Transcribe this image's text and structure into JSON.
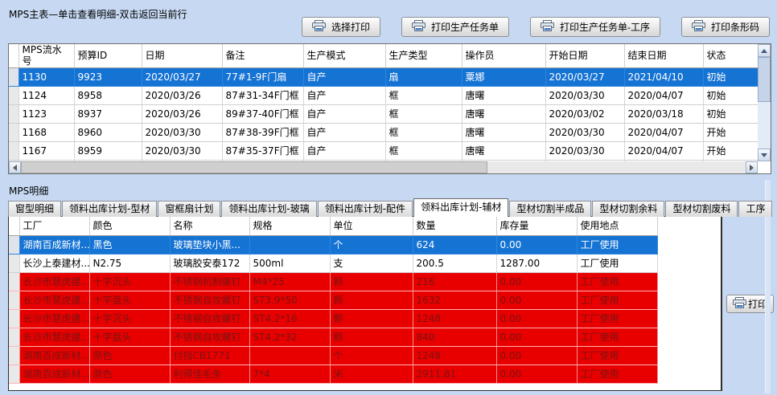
{
  "colors": {
    "background": "#c7d9f2",
    "selection_row": "#1573d4",
    "alert_row": "#e80000",
    "alert_row_text": "#7c1212"
  },
  "main_table": {
    "title": "MPS主表—单击查看明细-双击返回当前行",
    "columns": [
      "MPS流水号",
      "预算ID",
      "日期",
      "备注",
      "生产模式",
      "生产类型",
      "操作员",
      "开始日期",
      "结束日期",
      "状态"
    ],
    "rows": [
      {
        "state": "sel",
        "cells": [
          "1130",
          "9923",
          "2020/03/27",
          "77#1-9F门扇",
          "自产",
          "扇",
          "粟娜",
          "2020/03/27",
          "2021/04/10",
          "初始"
        ]
      },
      {
        "state": "normal",
        "cells": [
          "1124",
          "8958",
          "2020/03/26",
          "87#31-34F门框",
          "自产",
          "框",
          "唐曙",
          "2020/03/30",
          "2020/04/07",
          "初始"
        ]
      },
      {
        "state": "normal",
        "cells": [
          "1123",
          "8937",
          "2020/03/26",
          "89#37-40F门框",
          "自产",
          "框",
          "唐曙",
          "2020/03/02",
          "2020/03/18",
          "初始"
        ]
      },
      {
        "state": "normal",
        "cells": [
          "1168",
          "8960",
          "2020/03/30",
          "87#38-39F门框",
          "自产",
          "框",
          "唐曙",
          "2020/03/30",
          "2020/04/07",
          "开始"
        ]
      },
      {
        "state": "normal",
        "cells": [
          "1167",
          "8959",
          "2020/03/30",
          "87#35-37F门框",
          "自产",
          "框",
          "唐曙",
          "2020/03/30",
          "2020/04/07",
          "开始"
        ]
      }
    ]
  },
  "toolbar": {
    "buttons": [
      {
        "label": "选择打印"
      },
      {
        "label": "打印生产任务单"
      },
      {
        "label": "打印生产任务单-工序"
      },
      {
        "label": "打印条形码"
      }
    ]
  },
  "detail": {
    "title": "MPS明细",
    "tabs": [
      "窗型明细",
      "领料出库计划-型材",
      "窗框扇计划",
      "领料出库计划-玻璃",
      "领料出库计划-配件",
      "领料出库计划-辅材",
      "型材切割半成品",
      "型材切割余料",
      "型材切割废料",
      "工序"
    ],
    "active_tab_index": 5,
    "print_button_label": "打印",
    "table": {
      "columns": [
        "工厂",
        "颜色",
        "名称",
        "规格",
        "单位",
        "数量",
        "库存量",
        "使用地点"
      ],
      "rows": [
        {
          "state": "sel",
          "cells": [
            "湖南百成新材...",
            "黑色",
            "玻璃垫块小黑...",
            "",
            "个",
            "624",
            "0.00",
            "工厂使用"
          ]
        },
        {
          "state": "normal",
          "cells": [
            "长沙上泰建材...",
            "N2.75",
            "玻璃胶安泰172",
            "500ml",
            "支",
            "200.5",
            "1287.00",
            "工厂使用"
          ]
        },
        {
          "state": "alert",
          "cells": [
            "长沙市慧虎建...",
            "十字沉头",
            "不锈钢机制螺钉",
            "M4*25",
            "颗",
            "216",
            "0.00",
            "工厂使用"
          ]
        },
        {
          "state": "alert",
          "cells": [
            "长沙市慧虎建...",
            "十字盘头",
            "不锈钢自攻螺钉",
            "ST3.9*50",
            "颗",
            "1632",
            "0.00",
            "工厂使用"
          ]
        },
        {
          "state": "alert",
          "cells": [
            "长沙市慧虎建...",
            "十字沉头",
            "不锈钢自攻螺钉",
            "ST4.2*16",
            "颗",
            "1248",
            "0.00",
            "工厂使用"
          ]
        },
        {
          "state": "alert",
          "cells": [
            "长沙市慧虎建...",
            "十字盘头",
            "不锈钢自攻螺钉",
            "ST4.2*32",
            "颗",
            "840",
            "0.00",
            "工厂使用"
          ]
        },
        {
          "state": "alert",
          "cells": [
            "湖南百成新材...",
            "原色",
            "付挡CB1771",
            "",
            "个",
            "1248",
            "0.00",
            "工厂使用"
          ]
        },
        {
          "state": "alert",
          "cells": [
            "湖南百成新材...",
            "原色",
            "利得佳毛条",
            "7*4",
            "米",
            "2911.81",
            "0.00",
            "工厂使用"
          ]
        }
      ]
    }
  }
}
